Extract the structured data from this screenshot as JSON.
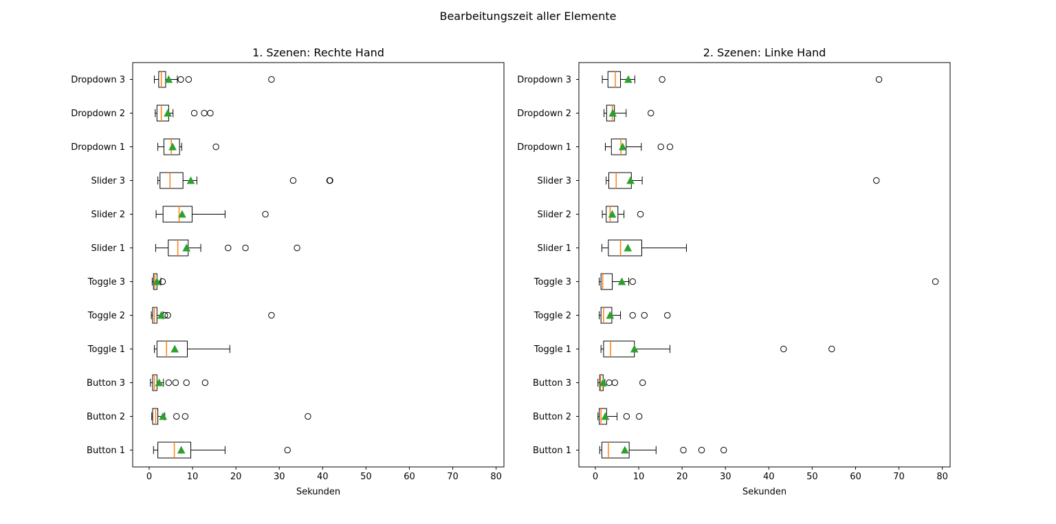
{
  "figure_title": "Bearbeitungszeit aller Elemente",
  "chart_data": [
    {
      "type": "boxplot",
      "title": "1. Szenen: Rechte Hand",
      "xlabel": "Sekunden",
      "ylabel": "",
      "xlim": [
        -3.8,
        81.8
      ],
      "xticks": [
        0,
        10,
        20,
        30,
        40,
        50,
        60,
        70,
        80
      ],
      "categories": [
        "Button 1",
        "Button 2",
        "Button 3",
        "Toggle 1",
        "Toggle 2",
        "Toggle 3",
        "Slider 1",
        "Slider 2",
        "Slider 3",
        "Dropdown 1",
        "Dropdown 2",
        "Dropdown 3"
      ],
      "boxes": [
        {
          "label": "Button 1",
          "whislo": 1.0,
          "q1": 2.0,
          "med": 5.8,
          "q3": 9.6,
          "whishi": 17.5,
          "mean": 7.4,
          "fliers": [
            31.9
          ]
        },
        {
          "label": "Button 2",
          "whislo": 0.6,
          "q1": 0.8,
          "med": 1.5,
          "q3": 2.0,
          "whishi": 3.6,
          "mean": 3.2,
          "fliers": [
            6.3,
            8.3,
            36.6
          ]
        },
        {
          "label": "Button 3",
          "whislo": 0.3,
          "q1": 0.8,
          "med": 1.2,
          "q3": 1.8,
          "whishi": 3.3,
          "mean": 2.3,
          "fliers": [
            4.5,
            6.1,
            8.6,
            12.9
          ]
        },
        {
          "label": "Toggle 1",
          "whislo": 1.2,
          "q1": 1.8,
          "med": 4.0,
          "q3": 8.8,
          "whishi": 18.6,
          "mean": 5.9,
          "fliers": []
        },
        {
          "label": "Toggle 2",
          "whislo": 0.5,
          "q1": 0.8,
          "med": 1.2,
          "q3": 1.8,
          "whishi": 3.2,
          "mean": 2.8,
          "fliers": [
            3.6,
            4.3,
            28.2
          ]
        },
        {
          "label": "Toggle 3",
          "whislo": 0.7,
          "q1": 1.0,
          "med": 1.3,
          "q3": 1.8,
          "whishi": 2.7,
          "mean": 1.8,
          "fliers": [
            3.1
          ]
        },
        {
          "label": "Slider 1",
          "whislo": 1.5,
          "q1": 4.4,
          "med": 6.6,
          "q3": 9.0,
          "whishi": 11.9,
          "mean": 8.6,
          "fliers": [
            18.2,
            22.2,
            34.1
          ]
        },
        {
          "label": "Slider 2",
          "whislo": 1.6,
          "q1": 3.2,
          "med": 6.9,
          "q3": 9.9,
          "whishi": 17.5,
          "mean": 7.6,
          "fliers": [
            26.8
          ]
        },
        {
          "label": "Slider 3",
          "whislo": 2.0,
          "q1": 2.5,
          "med": 4.8,
          "q3": 7.8,
          "whishi": 11.0,
          "mean": 9.6,
          "fliers": [
            33.2,
            41.6,
            41.7
          ]
        },
        {
          "label": "Dropdown 1",
          "whislo": 2.0,
          "q1": 3.4,
          "med": 5.1,
          "q3": 7.0,
          "whishi": 7.5,
          "mean": 5.4,
          "fliers": [
            15.4
          ]
        },
        {
          "label": "Dropdown 2",
          "whislo": 1.4,
          "q1": 1.8,
          "med": 2.8,
          "q3": 4.5,
          "whishi": 5.5,
          "mean": 4.3,
          "fliers": [
            10.4,
            12.7,
            14.1
          ]
        },
        {
          "label": "Dropdown 3",
          "whislo": 1.2,
          "q1": 2.2,
          "med": 2.8,
          "q3": 3.8,
          "whishi": 6.5,
          "mean": 4.5,
          "fliers": [
            7.3,
            9.1,
            28.2
          ]
        }
      ]
    },
    {
      "type": "boxplot",
      "title": "2. Szenen: Linke Hand",
      "xlabel": "Sekunden",
      "ylabel": "",
      "xlim": [
        -3.8,
        81.8
      ],
      "xticks": [
        0,
        10,
        20,
        30,
        40,
        50,
        60,
        70,
        80
      ],
      "categories": [
        "Button 1",
        "Button 2",
        "Button 3",
        "Toggle 1",
        "Toggle 2",
        "Toggle 3",
        "Slider 1",
        "Slider 2",
        "Slider 3",
        "Dropdown 1",
        "Dropdown 2",
        "Dropdown 3"
      ],
      "boxes": [
        {
          "label": "Button 1",
          "whislo": 1.0,
          "q1": 1.5,
          "med": 3.0,
          "q3": 7.8,
          "whishi": 14.0,
          "mean": 6.8,
          "fliers": [
            20.3,
            24.5,
            29.6
          ]
        },
        {
          "label": "Button 2",
          "whislo": 0.6,
          "q1": 0.9,
          "med": 1.3,
          "q3": 2.6,
          "whishi": 5.0,
          "mean": 2.3,
          "fliers": [
            7.2,
            10.1
          ]
        },
        {
          "label": "Button 3",
          "whislo": 0.6,
          "q1": 1.0,
          "med": 1.2,
          "q3": 1.8,
          "whishi": 2.2,
          "mean": 1.8,
          "fliers": [
            3.2,
            4.5,
            10.9
          ]
        },
        {
          "label": "Toggle 1",
          "whislo": 1.3,
          "q1": 1.9,
          "med": 3.5,
          "q3": 9.0,
          "whishi": 17.2,
          "mean": 9.0,
          "fliers": [
            43.4,
            54.5
          ]
        },
        {
          "label": "Toggle 2",
          "whislo": 0.9,
          "q1": 1.3,
          "med": 1.9,
          "q3": 3.8,
          "whishi": 5.8,
          "mean": 3.4,
          "fliers": [
            8.6,
            11.3,
            16.6
          ]
        },
        {
          "label": "Toggle 3",
          "whislo": 0.9,
          "q1": 1.3,
          "med": 1.7,
          "q3": 3.9,
          "whishi": 7.7,
          "mean": 6.1,
          "fliers": [
            8.6,
            78.4
          ]
        },
        {
          "label": "Slider 1",
          "whislo": 1.5,
          "q1": 3.0,
          "med": 5.8,
          "q3": 10.7,
          "whishi": 21.0,
          "mean": 7.5,
          "fliers": []
        },
        {
          "label": "Slider 2",
          "whislo": 1.6,
          "q1": 2.5,
          "med": 3.4,
          "q3": 5.2,
          "whishi": 6.6,
          "mean": 3.9,
          "fliers": [
            10.4
          ]
        },
        {
          "label": "Slider 3",
          "whislo": 2.5,
          "q1": 3.1,
          "med": 4.8,
          "q3": 8.3,
          "whishi": 10.8,
          "mean": 8.1,
          "fliers": [
            64.8
          ]
        },
        {
          "label": "Dropdown 1",
          "whislo": 2.3,
          "q1": 3.7,
          "med": 5.9,
          "q3": 7.1,
          "whishi": 10.6,
          "mean": 6.3,
          "fliers": [
            15.1,
            17.2
          ]
        },
        {
          "label": "Dropdown 2",
          "whislo": 2.0,
          "q1": 2.6,
          "med": 3.9,
          "q3": 4.4,
          "whishi": 7.1,
          "mean": 4.0,
          "fliers": [
            12.8
          ]
        },
        {
          "label": "Dropdown 3",
          "whislo": 1.6,
          "q1": 2.9,
          "med": 4.6,
          "q3": 5.8,
          "whishi": 9.1,
          "mean": 7.6,
          "fliers": [
            15.4,
            65.4
          ]
        }
      ]
    }
  ]
}
